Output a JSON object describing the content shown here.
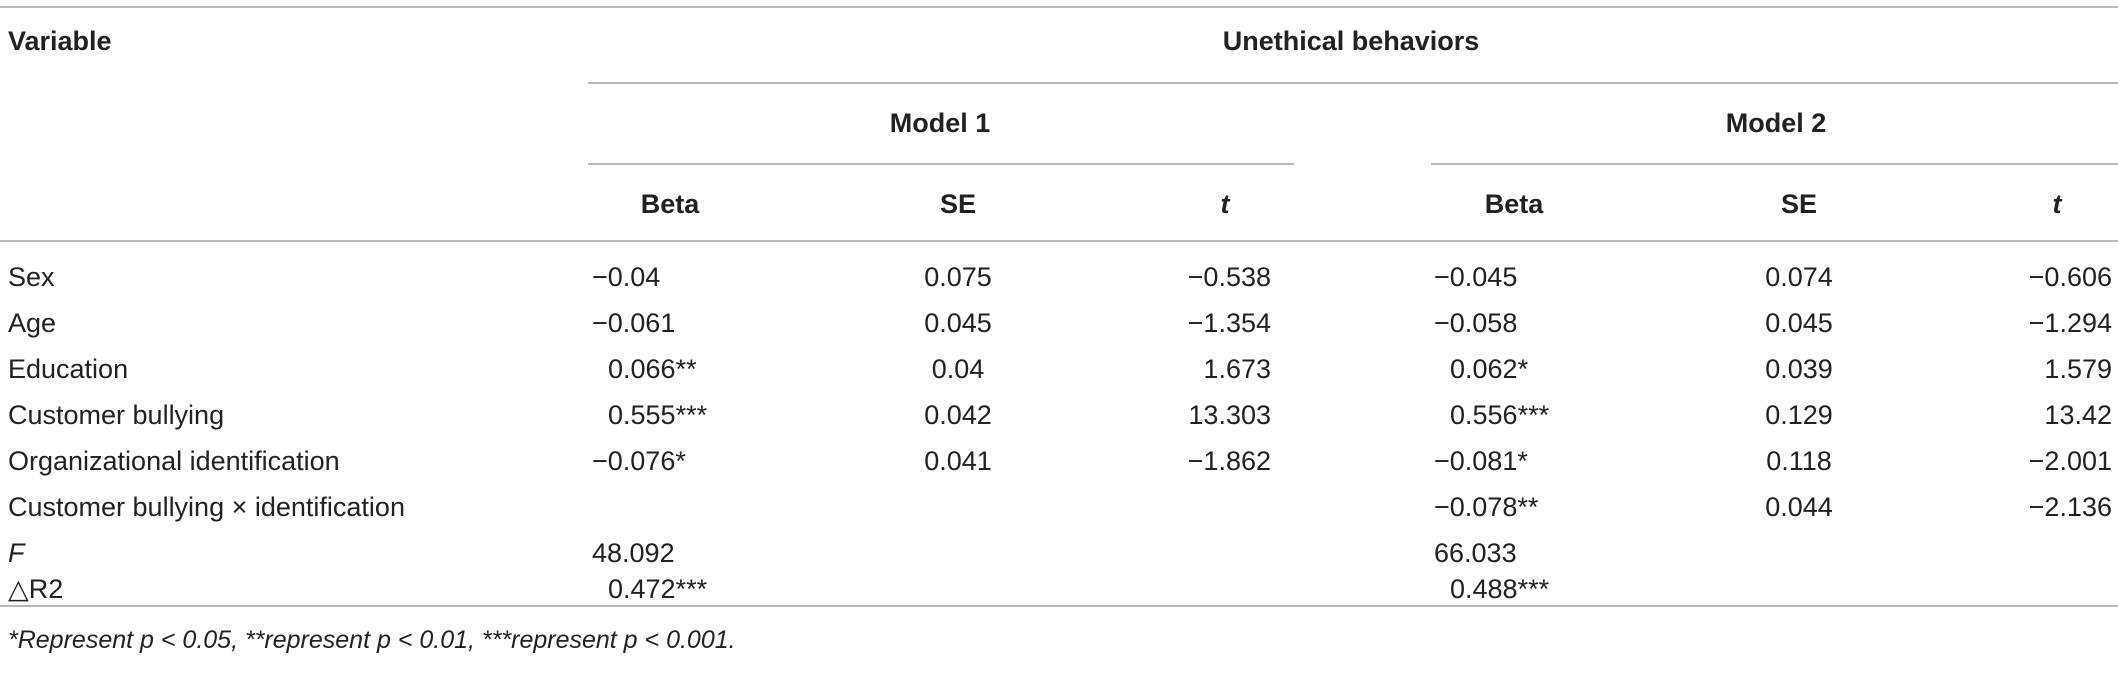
{
  "header": {
    "variable": "Variable",
    "dependent": "Unethical behaviors",
    "model1": "Model 1",
    "model2": "Model 2",
    "cols": [
      "Beta",
      "SE",
      "t",
      "Beta",
      "SE",
      "t"
    ]
  },
  "rows": [
    {
      "label": "Sex",
      "m1": [
        "−0.04",
        "0.075",
        "−0.538"
      ],
      "m2": [
        "−0.045",
        "0.074",
        "−0.606"
      ]
    },
    {
      "label": "Age",
      "m1": [
        "−0.061",
        "0.045",
        "−1.354"
      ],
      "m2": [
        "−0.058",
        "0.045",
        "−1.294"
      ]
    },
    {
      "label": "Education",
      "m1": [
        "0.066**",
        "0.04",
        "1.673"
      ],
      "m2": [
        "0.062*",
        "0.039",
        "1.579"
      ]
    },
    {
      "label": "Customer bullying",
      "m1": [
        "0.555***",
        "0.042",
        "13.303"
      ],
      "m2": [
        "0.556***",
        "0.129",
        "13.42"
      ]
    },
    {
      "label": "Organizational identification",
      "m1": [
        "−0.076*",
        "0.041",
        "−1.862"
      ],
      "m2": [
        "−0.081*",
        "0.118",
        "−2.001"
      ]
    },
    {
      "label": "Customer bullying × identification",
      "m1": [
        "",
        "",
        ""
      ],
      "m2": [
        "−0.078**",
        "0.044",
        "−2.136"
      ]
    },
    {
      "label": "F",
      "m1": [
        "48.092",
        "",
        ""
      ],
      "m2": [
        "66.033",
        "",
        ""
      ]
    },
    {
      "label": "△R2",
      "m1": [
        "0.472***",
        "",
        ""
      ],
      "m2": [
        "0.488***",
        "",
        ""
      ]
    }
  ],
  "footnote": "*Represent p < 0.05, **represent p < 0.01, ***represent p < 0.001."
}
